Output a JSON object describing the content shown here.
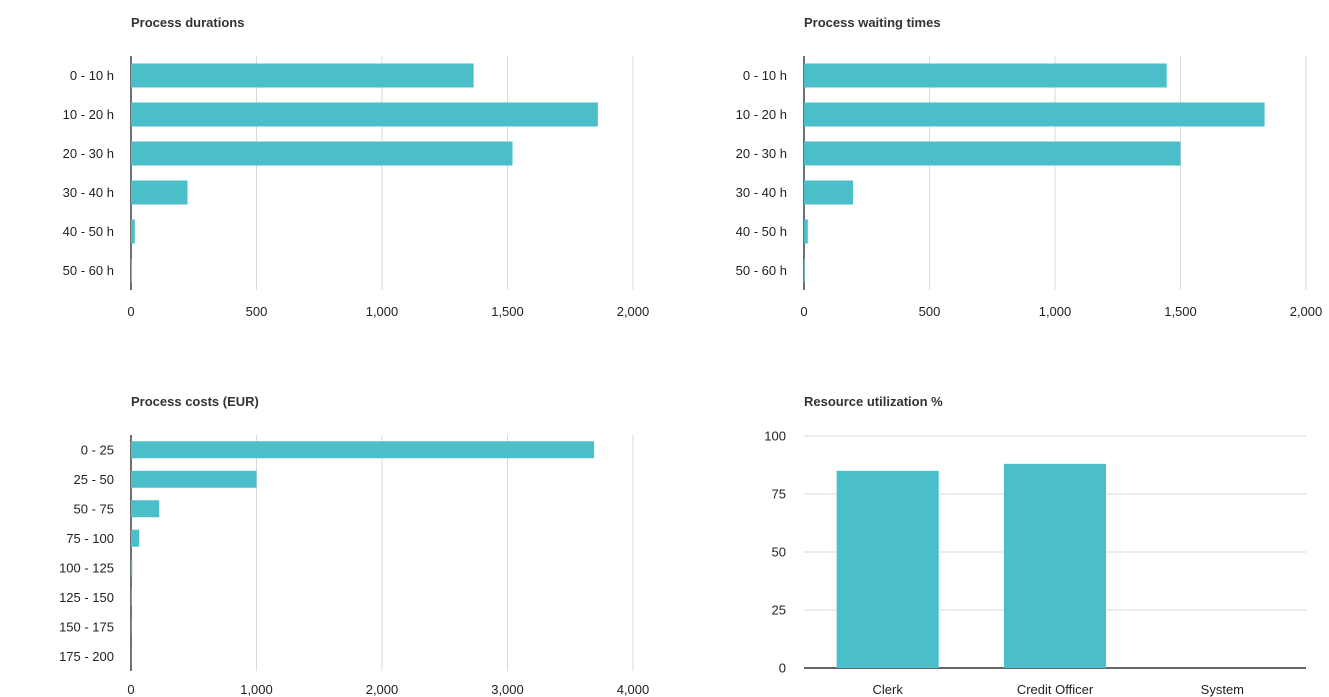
{
  "colors": {
    "bar": "#4bbfc9",
    "grid": "#d9d9d9",
    "axis": "#333333",
    "text": "#222222",
    "title": "#333333"
  },
  "chart_data": [
    {
      "id": "durations",
      "type": "bar",
      "orientation": "horizontal",
      "title": "Process durations",
      "categories": [
        "0 - 10 h",
        "10 - 20 h",
        "20 - 30 h",
        "30 - 40 h",
        "40 - 50 h",
        "50 - 60 h"
      ],
      "values": [
        1365,
        1860,
        1520,
        225,
        15,
        2
      ],
      "xlim": [
        0,
        2000
      ],
      "ticks": [
        0,
        500,
        1000,
        1500,
        2000
      ],
      "tick_labels": [
        "0",
        "500",
        "1,000",
        "1,500",
        "2,000"
      ],
      "grid": true
    },
    {
      "id": "waiting",
      "type": "bar",
      "orientation": "horizontal",
      "title": "Process waiting times",
      "categories": [
        "0 - 10 h",
        "10 - 20 h",
        "20 - 30 h",
        "30 - 40 h",
        "40 - 50 h",
        "50 - 60 h"
      ],
      "values": [
        1445,
        1835,
        1500,
        195,
        15,
        2
      ],
      "xlim": [
        0,
        2000
      ],
      "ticks": [
        0,
        500,
        1000,
        1500,
        2000
      ],
      "tick_labels": [
        "0",
        "500",
        "1,000",
        "1,500",
        "2,000"
      ],
      "grid": true
    },
    {
      "id": "costs",
      "type": "bar",
      "orientation": "horizontal",
      "title": "Process costs (EUR)",
      "categories": [
        "0 - 25",
        "25 - 50",
        "50 - 75",
        "75 - 100",
        "100 - 125",
        "125 - 150",
        "150 - 175",
        "175 - 200"
      ],
      "values": [
        3690,
        1000,
        225,
        65,
        10,
        3,
        2,
        1
      ],
      "xlim": [
        0,
        4000
      ],
      "ticks": [
        0,
        1000,
        2000,
        3000,
        4000
      ],
      "tick_labels": [
        "0",
        "1,000",
        "2,000",
        "3,000",
        "4,000"
      ],
      "grid": true
    },
    {
      "id": "utilization",
      "type": "bar",
      "orientation": "vertical",
      "title": "Resource utilization %",
      "categories": [
        "Clerk",
        "Credit Officer",
        "System"
      ],
      "values": [
        85,
        88,
        0
      ],
      "ylim": [
        0,
        100
      ],
      "ticks": [
        0,
        25,
        50,
        75,
        100
      ],
      "tick_labels": [
        "0",
        "25",
        "50",
        "75",
        "100"
      ],
      "grid": true
    }
  ]
}
